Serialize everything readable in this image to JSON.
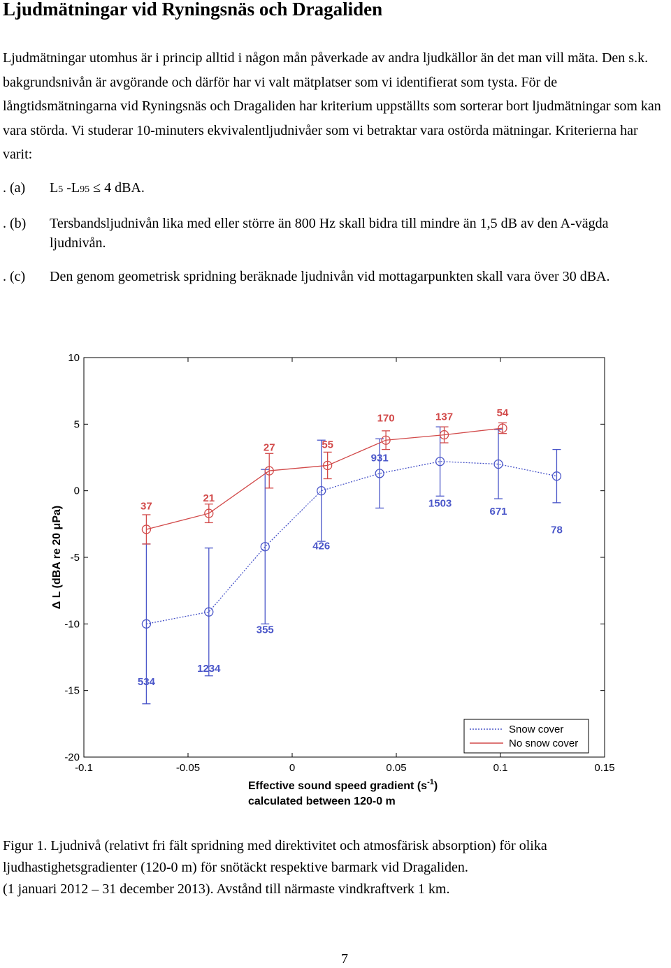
{
  "page": {
    "title": "Ljudmätningar vid Ryningsnäs och Dragaliden",
    "paragraph": "Ljudmätningar utomhus är i princip alltid i någon mån påverkade av andra ljudkällor än det man vill mäta. Den s.k. bakgrundsnivån är avgörande och därför har vi valt mätplatser som vi identifierat som tysta. För de långtidsmätningarna vid Ryningsnäs och Dragaliden har kriterium uppställts som sorterar bort ljudmätningar som kan vara störda. Vi studerar 10-minuters ekvivalentljudnivåer som vi betraktar vara ostörda mätningar. Kriterierna har varit:",
    "criteria": [
      {
        "label": ". (a)",
        "text_l": "L",
        "sub1": "5",
        "mid": " -L",
        "sub2": "95",
        "rest": " ≤ 4 dBA."
      },
      {
        "label": ". (b)",
        "text": "Tersbandsljudnivån lika med eller större än 800 Hz  skall bidra till mindre än 1,5 dB av den A-vägda ljudnivån."
      },
      {
        "label": ". (c)",
        "text": "Den genom geometrisk spridning beräknade ljudnivån vid mottagarpunkten skall vara över 30 dBA."
      }
    ],
    "caption_line1": "Figur 1. Ljudnivå (relativt fri fält spridning med direktivitet och atmosfärisk absorption) för olika ljudhastighetsgradienter (120-0 m) för snötäckt respektive barmark vid Dragaliden.",
    "caption_line2": "(1 januari 2012 – 31 december 2013). Avstånd till närmaste vindkraftverk 1 km.",
    "page_number": "7"
  },
  "chart_data": {
    "type": "line",
    "xlabel_line1": "Effective sound speed gradient (s",
    "xlabel_sup": "-1",
    "xlabel_close": ")",
    "xlabel_line2": "calculated between 120-0 m",
    "ylabel": "Δ L (dBA re 20 μPa)",
    "xlim": [
      -0.1,
      0.15
    ],
    "ylim": [
      -20,
      10
    ],
    "xticks": [
      -0.1,
      -0.05,
      0,
      0.05,
      0.1,
      0.15
    ],
    "xtick_labels": [
      "-0.1",
      "-0.05",
      "0",
      "0.05",
      "0.1",
      "0.15"
    ],
    "yticks": [
      -20,
      -15,
      -10,
      -5,
      0,
      5,
      10
    ],
    "ytick_labels": [
      "-20",
      "-15",
      "-10",
      "-5",
      "0",
      "5",
      "10"
    ],
    "legend_position": "bottom-right",
    "series": [
      {
        "name": "Snow cover",
        "color": "#4a56c9",
        "line_style": "dotted",
        "x": [
          -0.07,
          -0.04,
          -0.013,
          0.014,
          0.042,
          0.071,
          0.099,
          0.127
        ],
        "y": [
          -10.0,
          -9.1,
          -4.2,
          0.0,
          1.3,
          2.2,
          2.0,
          1.1
        ],
        "err": [
          6.0,
          4.8,
          5.8,
          3.8,
          2.6,
          2.6,
          2.6,
          2.0
        ],
        "counts": [
          "534",
          "1234",
          "355",
          "426",
          "931",
          "1503",
          "671",
          "78"
        ],
        "count_y": [
          -14.6,
          -13.6,
          -10.7,
          -4.4,
          2.2,
          -1.2,
          -1.8,
          -3.2
        ]
      },
      {
        "name": "No snow cover",
        "color": "#d24a4a",
        "line_style": "solid",
        "x": [
          -0.07,
          -0.04,
          -0.011,
          0.017,
          0.045,
          0.073,
          0.101
        ],
        "y": [
          -2.9,
          -1.7,
          1.5,
          1.9,
          3.8,
          4.2,
          4.7
        ],
        "err": [
          1.1,
          0.7,
          1.3,
          1.0,
          0.7,
          0.6,
          0.4
        ],
        "counts": [
          "37",
          "21",
          "27",
          "55",
          "170",
          "137",
          "54"
        ],
        "count_y": [
          -1.4,
          -0.8,
          3.0,
          3.2,
          5.2,
          5.3,
          5.6
        ]
      }
    ]
  }
}
